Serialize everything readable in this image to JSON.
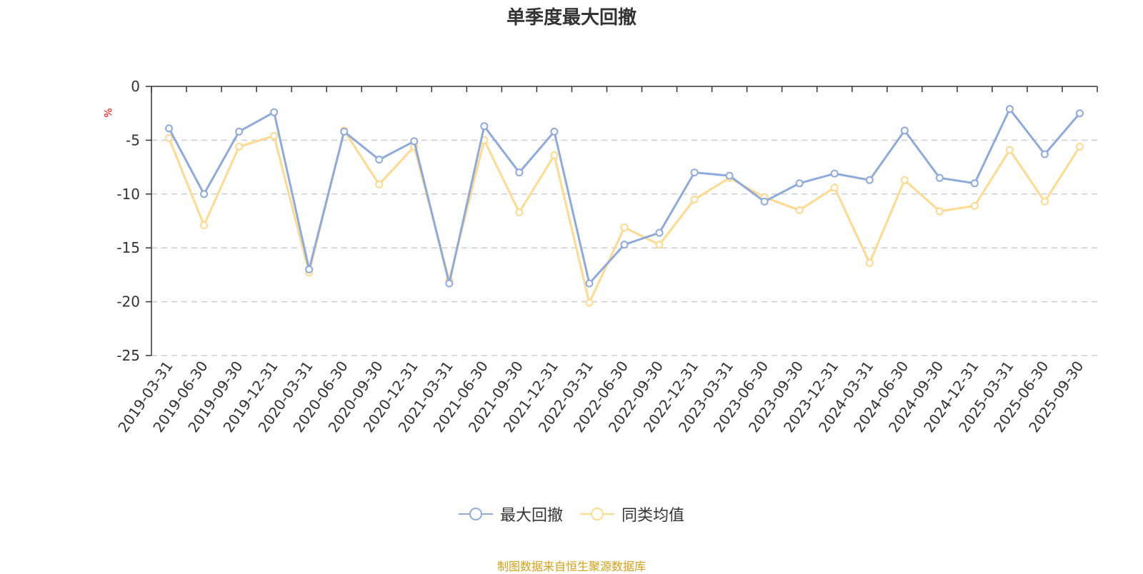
{
  "title": "单季度最大回撤",
  "unit_label": "%",
  "source_text": "制图数据来自恒生聚源数据库",
  "legend": [
    {
      "label": "最大回撤",
      "color": "#8eaadb"
    },
    {
      "label": "同类均值",
      "color": "#ffd98e"
    }
  ],
  "chart_data": {
    "type": "line",
    "title": "单季度最大回撤",
    "ylabel": "%",
    "ylim": [
      -25,
      0
    ],
    "yticks": [
      0,
      -5,
      -10,
      -15,
      -20,
      -25
    ],
    "grid": "horizontal-dashed",
    "legend_position": "bottom-center",
    "x": [
      "2019-03-31",
      "2019-06-30",
      "2019-09-30",
      "2019-12-31",
      "2020-03-31",
      "2020-06-30",
      "2020-09-30",
      "2020-12-31",
      "2021-03-31",
      "2021-06-30",
      "2021-09-30",
      "2021-12-31",
      "2022-03-31",
      "2022-06-30",
      "2022-09-30",
      "2022-12-31",
      "2023-03-31",
      "2023-06-30",
      "2023-09-30",
      "2023-12-31",
      "2024-03-31",
      "2024-06-30",
      "2024-09-30",
      "2024-12-31",
      "2025-03-31",
      "2025-06-30",
      "2025-09-30"
    ],
    "series": [
      {
        "name": "最大回撤",
        "color": "#8eaadb",
        "values": [
          -3.9,
          -10.0,
          -4.2,
          -2.4,
          -17.0,
          -4.2,
          -6.8,
          -5.1,
          -18.3,
          -3.7,
          -8.0,
          -4.2,
          -18.3,
          -14.7,
          -13.6,
          -8.0,
          -8.3,
          -10.7,
          -9.0,
          -8.1,
          -8.7,
          -4.1,
          -8.5,
          -9.0,
          -2.1,
          -6.3,
          -2.5
        ]
      },
      {
        "name": "同类均值",
        "color": "#ffd98e",
        "values": [
          -4.8,
          -12.9,
          -5.6,
          -4.6,
          -17.3,
          -4.1,
          -9.1,
          -5.6,
          -18.0,
          -5.0,
          -11.7,
          -6.4,
          -20.1,
          -13.1,
          -14.7,
          -10.5,
          -8.5,
          -10.3,
          -11.5,
          -9.4,
          -16.4,
          -8.7,
          -11.6,
          -11.1,
          -5.9,
          -10.7,
          -5.6
        ]
      }
    ]
  }
}
